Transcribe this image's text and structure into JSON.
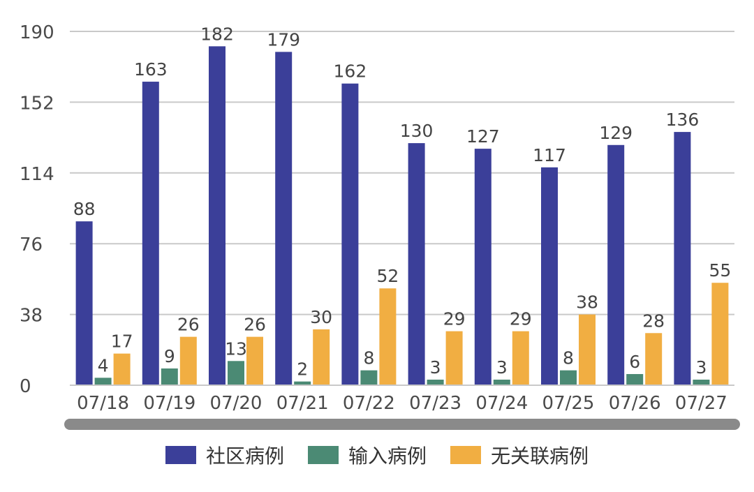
{
  "chart_data": {
    "type": "bar",
    "categories": [
      "07/18",
      "07/19",
      "07/20",
      "07/21",
      "07/22",
      "07/23",
      "07/24",
      "07/25",
      "07/26",
      "07/27"
    ],
    "series": [
      {
        "name": "社区病例",
        "color": "#3b3f99",
        "values": [
          88,
          163,
          182,
          179,
          162,
          130,
          127,
          117,
          129,
          136
        ]
      },
      {
        "name": "输入病例",
        "color": "#4b8a74",
        "values": [
          4,
          9,
          13,
          2,
          8,
          3,
          3,
          8,
          6,
          3
        ]
      },
      {
        "name": "无关联病例",
        "color": "#f1ae42",
        "values": [
          17,
          26,
          26,
          30,
          52,
          29,
          29,
          38,
          28,
          55
        ]
      }
    ],
    "yticks": [
      "0",
      "38",
      "76",
      "114",
      "152",
      "190"
    ],
    "ylim": [
      0,
      190
    ],
    "grid": true,
    "legend_position": "bottom",
    "data_labels": true
  }
}
